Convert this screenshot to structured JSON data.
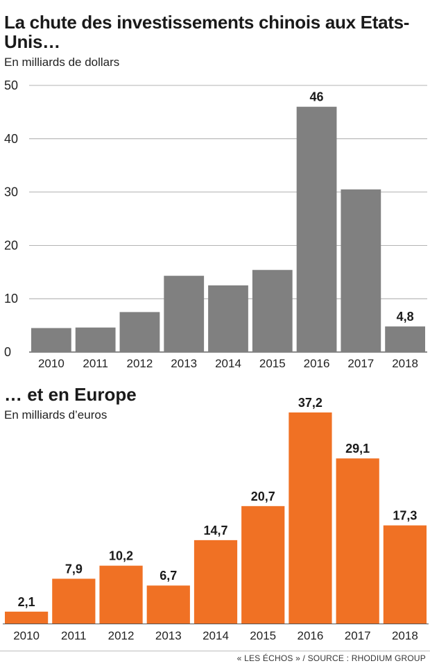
{
  "chart_data": [
    {
      "type": "bar",
      "title": "La chute des investissements chinois aux Etats-Unis…",
      "subtitle": "En milliards de dollars",
      "categories": [
        "2010",
        "2011",
        "2012",
        "2013",
        "2014",
        "2015",
        "2016",
        "2017",
        "2018"
      ],
      "values": [
        4.5,
        4.6,
        7.5,
        14.3,
        12.5,
        15.4,
        46,
        30.5,
        4.8
      ],
      "data_labels": {
        "2016": "46",
        "2018": "4,8"
      },
      "ylim": [
        0,
        50
      ],
      "yticks": [
        0,
        10,
        20,
        30,
        40,
        50
      ],
      "grid": true,
      "color": "#808080"
    },
    {
      "type": "bar",
      "title": "… et en Europe",
      "subtitle": "En milliards d’euros",
      "categories": [
        "2010",
        "2011",
        "2012",
        "2013",
        "2014",
        "2015",
        "2016",
        "2017",
        "2018"
      ],
      "values": [
        2.1,
        7.9,
        10.2,
        6.7,
        14.7,
        20.7,
        37.2,
        29.1,
        17.3
      ],
      "data_labels": [
        "2,1",
        "7,9",
        "10,2",
        "6,7",
        "14,7",
        "20,7",
        "37,2",
        "29,1",
        "17,3"
      ],
      "grid": false,
      "color": "#f07124"
    }
  ],
  "footer": "« LES ÉCHOS » / SOURCE : RHODIUM GROUP"
}
